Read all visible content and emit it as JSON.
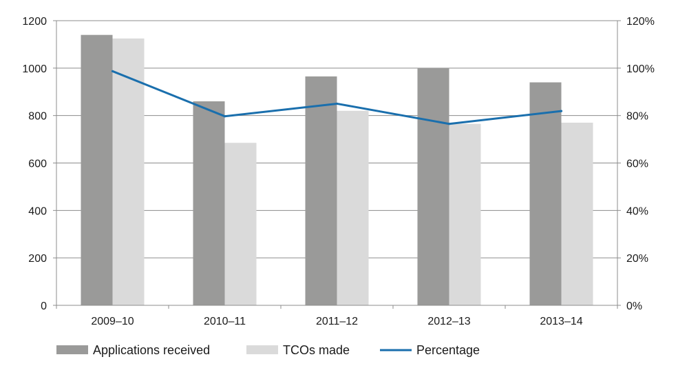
{
  "chart_data": {
    "type": "bar",
    "categories": [
      "2009–10",
      "2010–11",
      "2011–12",
      "2012–13",
      "2013–14"
    ],
    "series": [
      {
        "name": "Applications received",
        "type": "bar",
        "axis": "left",
        "values": [
          1140,
          860,
          965,
          1000,
          940
        ],
        "color": "#9a9a99"
      },
      {
        "name": "TCOs made",
        "type": "bar",
        "axis": "left",
        "values": [
          1125,
          685,
          820,
          765,
          770
        ],
        "color": "#dadada"
      },
      {
        "name": "Percentage",
        "type": "line",
        "axis": "right",
        "values": [
          98.7,
          79.7,
          85.0,
          76.5,
          81.9
        ],
        "color": "#1a6fad"
      }
    ],
    "title": "",
    "xlabel": "",
    "ylabel": "",
    "ylim": [
      0,
      1200
    ],
    "yticks": [
      "0",
      "200",
      "400",
      "600",
      "800",
      "1000",
      "1200"
    ],
    "y2lim": [
      0,
      120
    ],
    "y2ticks": [
      "0%",
      "20%",
      "40%",
      "60%",
      "80%",
      "100%",
      "120%"
    ],
    "grid": true,
    "legend_position": "bottom-left"
  }
}
